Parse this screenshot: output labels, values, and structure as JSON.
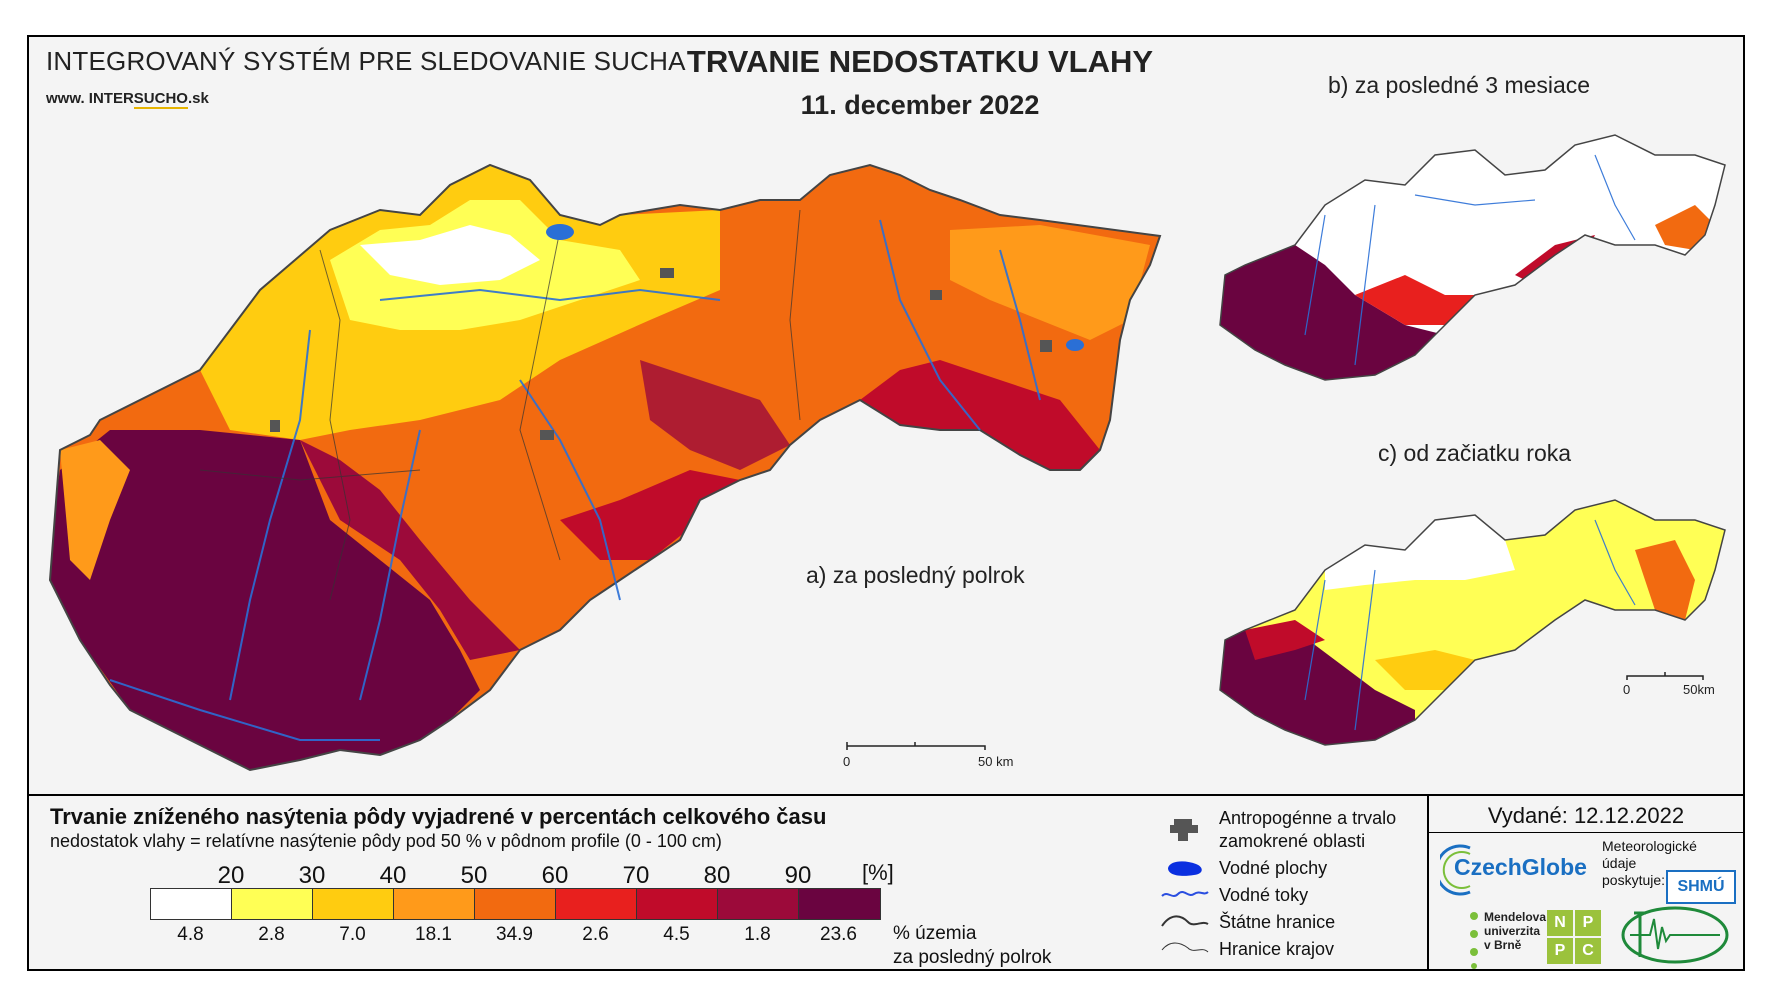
{
  "header": {
    "system_name": "INTEGROVANÝ SYSTÉM PRE SLEDOVANIE SUCHA",
    "url_prefix": "www. INTER",
    "url_highlight": "SUCHO",
    "url_suffix": ".sk",
    "title": "TRVANIE NEDOSTATKU VLAHY",
    "date": "11. december 2022"
  },
  "panels": {
    "a_label": "a) za posledný polrok",
    "b_label": "b) za posledné 3 mesiace",
    "c_label": "c) od začiatku roka",
    "scale_main": {
      "zero": "0",
      "end": "50 km"
    },
    "scale_small": {
      "zero": "0",
      "end": "50km"
    }
  },
  "legend": {
    "title": "Trvanie zníženého nasýtenia pôdy vyjadrené v percentách celkového času",
    "subtitle": "nedostatok vlahy = relatívne nasýtenie pôdy pod 50 % v pôdnom profile (0 - 100 cm)",
    "thresholds": [
      "20",
      "30",
      "40",
      "50",
      "60",
      "70",
      "80",
      "90"
    ],
    "unit": "[%]",
    "colors": [
      "#ffffff",
      "#ffff55",
      "#ffcc10",
      "#ff9a1a",
      "#f26a10",
      "#e8201e",
      "#c00b2a",
      "#9c0a3a",
      "#6a0440"
    ],
    "percent_area": [
      "4.8",
      "2.8",
      "7.0",
      "18.1",
      "34.9",
      "2.6",
      "4.5",
      "1.8",
      "23.6"
    ],
    "percent_caption_1": "% územia",
    "percent_caption_2": "za posledný polrok"
  },
  "symbols": {
    "anthropogenic_1": "Antropogénne a trvalo",
    "anthropogenic_2": "zamokrené oblasti",
    "water_bodies": "Vodné plochy",
    "water_streams": "Vodné toky",
    "state_border": "Štátne hranice",
    "region_border": "Hranice krajov"
  },
  "issued": "Vydané: 12.12.2022",
  "providers": {
    "data_line_1": "Meteorologické",
    "data_line_2": "údaje",
    "data_line_3": "poskytuje:",
    "czechglobe": "CzechGlobe",
    "mendel_1": "Mendelova",
    "mendel_2": "univerzita",
    "mendel_3": "v Brně",
    "nppc": [
      "N",
      "P",
      "P",
      "C"
    ],
    "shmu": "SHMÚ"
  },
  "map_colors": {
    "dark": "#6a0440",
    "red": "#c00b2a",
    "orange": "#f26a10",
    "light_orange": "#ff9a1a",
    "gold": "#ffcc10",
    "yellow": "#ffff55",
    "white": "#ffffff",
    "river": "#2a6fd6",
    "anthropogenic": "#555555"
  }
}
